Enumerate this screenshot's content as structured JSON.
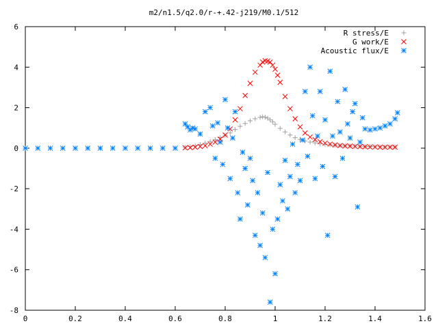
{
  "chart_data": {
    "type": "scatter",
    "title": "m2/n1.5/q2.0/r-+.42-j219/M0.1/512",
    "xlabel": "",
    "ylabel": "",
    "xlim": [
      0,
      1.6
    ],
    "ylim": [
      -8,
      6
    ],
    "xticks": [
      "0",
      "0.2",
      "0.4",
      "0.6",
      "0.8",
      "1",
      "1.2",
      "1.4",
      "1.6"
    ],
    "yticks": [
      "6",
      "4",
      "2",
      "0",
      "-2",
      "-4",
      "-6",
      "-8"
    ],
    "grid": false,
    "legend_position": "top-right",
    "series": [
      {
        "name": "R stress/E",
        "marker": "plus",
        "color": "#a0a0a0",
        "x": [
          0.64,
          0.66,
          0.68,
          0.7,
          0.72,
          0.74,
          0.76,
          0.78,
          0.8,
          0.82,
          0.84,
          0.86,
          0.88,
          0.9,
          0.92,
          0.94,
          0.95,
          0.96,
          0.97,
          0.98,
          0.99,
          1.0,
          1.02,
          1.04,
          1.06,
          1.08,
          1.1,
          1.12,
          1.14,
          1.16,
          1.18,
          1.2,
          1.22,
          1.24,
          1.26,
          1.28,
          1.3,
          1.32,
          1.34,
          1.36,
          1.38,
          1.4,
          1.42,
          1.44,
          1.46,
          1.48
        ],
        "y": [
          0.05,
          0.08,
          0.12,
          0.18,
          0.25,
          0.33,
          0.42,
          0.52,
          0.63,
          0.76,
          0.92,
          1.08,
          1.22,
          1.35,
          1.45,
          1.52,
          1.55,
          1.53,
          1.48,
          1.4,
          1.3,
          1.18,
          0.98,
          0.8,
          0.65,
          0.52,
          0.43,
          0.36,
          0.3,
          0.26,
          0.22,
          0.19,
          0.17,
          0.15,
          0.13,
          0.12,
          0.11,
          0.1,
          0.09,
          0.08,
          0.08,
          0.07,
          0.07,
          0.06,
          0.06,
          0.06
        ]
      },
      {
        "name": "G work/E",
        "marker": "cross",
        "color": "#ff0000",
        "x": [
          0.64,
          0.66,
          0.68,
          0.7,
          0.72,
          0.74,
          0.76,
          0.78,
          0.8,
          0.82,
          0.84,
          0.86,
          0.88,
          0.9,
          0.92,
          0.94,
          0.95,
          0.96,
          0.97,
          0.98,
          0.99,
          1.0,
          1.01,
          1.02,
          1.04,
          1.06,
          1.08,
          1.1,
          1.12,
          1.14,
          1.16,
          1.18,
          1.2,
          1.22,
          1.24,
          1.26,
          1.28,
          1.3,
          1.32,
          1.34,
          1.36,
          1.38,
          1.4,
          1.42,
          1.44,
          1.46,
          1.48
        ],
        "y": [
          0.02,
          0.03,
          0.05,
          0.08,
          0.12,
          0.2,
          0.3,
          0.45,
          0.65,
          0.95,
          1.4,
          1.95,
          2.6,
          3.2,
          3.75,
          4.1,
          4.25,
          4.32,
          4.3,
          4.25,
          4.1,
          3.9,
          3.6,
          3.25,
          2.55,
          1.95,
          1.45,
          1.05,
          0.75,
          0.55,
          0.42,
          0.32,
          0.25,
          0.2,
          0.16,
          0.13,
          0.11,
          0.1,
          0.09,
          0.08,
          0.07,
          0.06,
          0.06,
          0.05,
          0.05,
          0.05,
          0.05
        ]
      },
      {
        "name": "Acoustic flux/E",
        "marker": "star",
        "color": "#0080ff",
        "x": [
          0.0,
          0.05,
          0.1,
          0.15,
          0.2,
          0.25,
          0.3,
          0.35,
          0.4,
          0.45,
          0.5,
          0.55,
          0.6,
          0.64,
          0.65,
          0.66,
          0.67,
          0.68,
          0.7,
          0.72,
          0.74,
          0.75,
          0.76,
          0.77,
          0.78,
          0.79,
          0.8,
          0.81,
          0.82,
          0.83,
          0.84,
          0.85,
          0.86,
          0.87,
          0.88,
          0.89,
          0.9,
          0.91,
          0.92,
          0.93,
          0.94,
          0.95,
          0.96,
          0.97,
          0.98,
          0.99,
          1.0,
          1.01,
          1.02,
          1.03,
          1.04,
          1.05,
          1.06,
          1.07,
          1.08,
          1.09,
          1.1,
          1.11,
          1.12,
          1.13,
          1.14,
          1.15,
          1.16,
          1.17,
          1.18,
          1.19,
          1.2,
          1.21,
          1.22,
          1.23,
          1.24,
          1.25,
          1.26,
          1.27,
          1.28,
          1.29,
          1.3,
          1.31,
          1.32,
          1.33,
          1.34,
          1.35,
          1.36,
          1.38,
          1.4,
          1.42,
          1.44,
          1.46,
          1.48,
          1.49
        ],
        "y": [
          0,
          0,
          0,
          0,
          0,
          0,
          0,
          0,
          0,
          0,
          0,
          0,
          0,
          1.2,
          1.05,
          0.9,
          1.0,
          0.95,
          0.7,
          1.8,
          2.0,
          1.1,
          -0.5,
          1.25,
          0.3,
          -0.8,
          2.4,
          1.0,
          -1.5,
          0.5,
          1.8,
          -2.2,
          -3.5,
          -0.2,
          -1.0,
          -2.8,
          -0.5,
          -1.6,
          -4.3,
          -2.2,
          -4.8,
          -3.2,
          -5.4,
          -1.2,
          -7.6,
          -4.0,
          -6.2,
          -3.5,
          -1.8,
          -2.6,
          -0.6,
          -3.0,
          -1.4,
          0.2,
          -2.2,
          -0.8,
          -1.6,
          0.4,
          2.8,
          -0.4,
          4.0,
          1.6,
          -1.5,
          0.6,
          2.8,
          -0.9,
          1.4,
          -4.3,
          3.8,
          0.6,
          -1.4,
          2.3,
          0.8,
          -0.5,
          2.9,
          1.2,
          0.5,
          1.8,
          2.2,
          -2.9,
          0.3,
          1.5,
          0.95,
          0.9,
          0.95,
          1.0,
          1.1,
          1.2,
          1.45,
          1.75
        ]
      }
    ]
  }
}
